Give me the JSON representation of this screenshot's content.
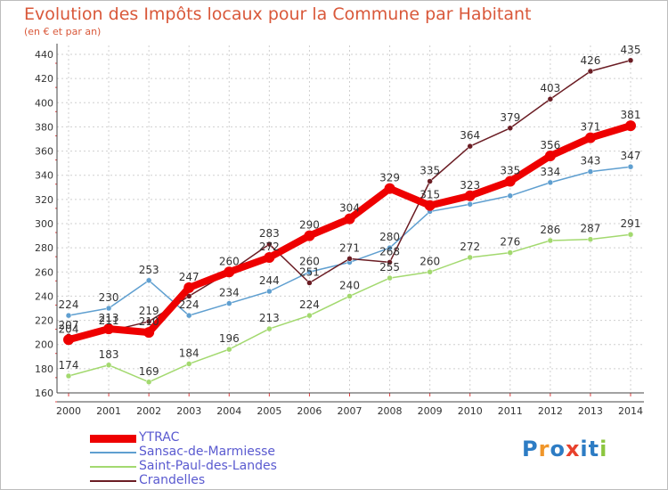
{
  "title": "Evolution des Impôts locaux pour la Commune par Habitant",
  "subtitle": "(en € et par an)",
  "logo": {
    "letters": [
      "P",
      "r",
      "o",
      "x",
      "i",
      "t",
      "i"
    ],
    "colors": [
      "#2d7cc4",
      "#f0962a",
      "#2d7cc4",
      "#e8412c",
      "#2d7cc4",
      "#2d7cc4",
      "#8cc63f"
    ]
  },
  "chart_data": {
    "type": "line",
    "x": [
      2000,
      2001,
      2002,
      2003,
      2004,
      2005,
      2006,
      2007,
      2008,
      2009,
      2010,
      2011,
      2012,
      2013,
      2014
    ],
    "ylim": [
      160,
      440
    ],
    "yticks": [
      160,
      180,
      200,
      220,
      240,
      260,
      280,
      300,
      320,
      340,
      360,
      380,
      400,
      420,
      440
    ],
    "grid": true,
    "legend_position": "bottom-left",
    "series": [
      {
        "name": "Sansac-de-Marmiesse",
        "color": "#5f9fd0",
        "values": [
          224,
          230,
          253,
          224,
          234,
          244,
          260,
          268,
          280,
          310,
          316,
          323,
          334,
          343,
          347
        ],
        "labels": [
          "224",
          "230",
          "253",
          "224",
          "234",
          "244",
          "260",
          "",
          "280",
          "",
          "",
          "",
          "334",
          "343",
          "347"
        ]
      },
      {
        "name": "Saint-Paul-des-Landes",
        "color": "#a3d96f",
        "values": [
          174,
          183,
          169,
          184,
          196,
          213,
          224,
          240,
          255,
          260,
          272,
          276,
          286,
          287,
          291
        ],
        "labels": [
          "174",
          "183",
          "169",
          "184",
          "196",
          "213",
          "224",
          "240",
          "255",
          "260",
          "272",
          "276",
          "286",
          "287",
          "291"
        ]
      },
      {
        "name": "Crandelles",
        "color": "#6b1d24",
        "values": [
          207,
          211,
          219,
          240,
          260,
          283,
          251,
          271,
          268,
          335,
          364,
          379,
          403,
          426,
          435
        ],
        "labels": [
          "207",
          "211",
          "219",
          "",
          "",
          "283",
          "251",
          "271",
          "268",
          "335",
          "364",
          "379",
          "403",
          "426",
          "435"
        ]
      },
      {
        "name": "YTRAC",
        "color": "#ee0000",
        "values": [
          204,
          213,
          210,
          247,
          260,
          272,
          290,
          304,
          329,
          315,
          323,
          335,
          356,
          371,
          381
        ],
        "labels": [
          "204",
          "213",
          "210",
          "247",
          "260",
          "272",
          "290",
          "304",
          "329",
          "315",
          "323",
          "335",
          "356",
          "371",
          "381"
        ]
      }
    ]
  },
  "legend": [
    {
      "name": "YTRAC",
      "color": "#ee0000",
      "thickness": 9
    },
    {
      "name": "Sansac-de-Marmiesse",
      "color": "#5f9fd0",
      "thickness": 2
    },
    {
      "name": "Saint-Paul-des-Landes",
      "color": "#a3d96f",
      "thickness": 2
    },
    {
      "name": "Crandelles",
      "color": "#6b1d24",
      "thickness": 2
    }
  ]
}
